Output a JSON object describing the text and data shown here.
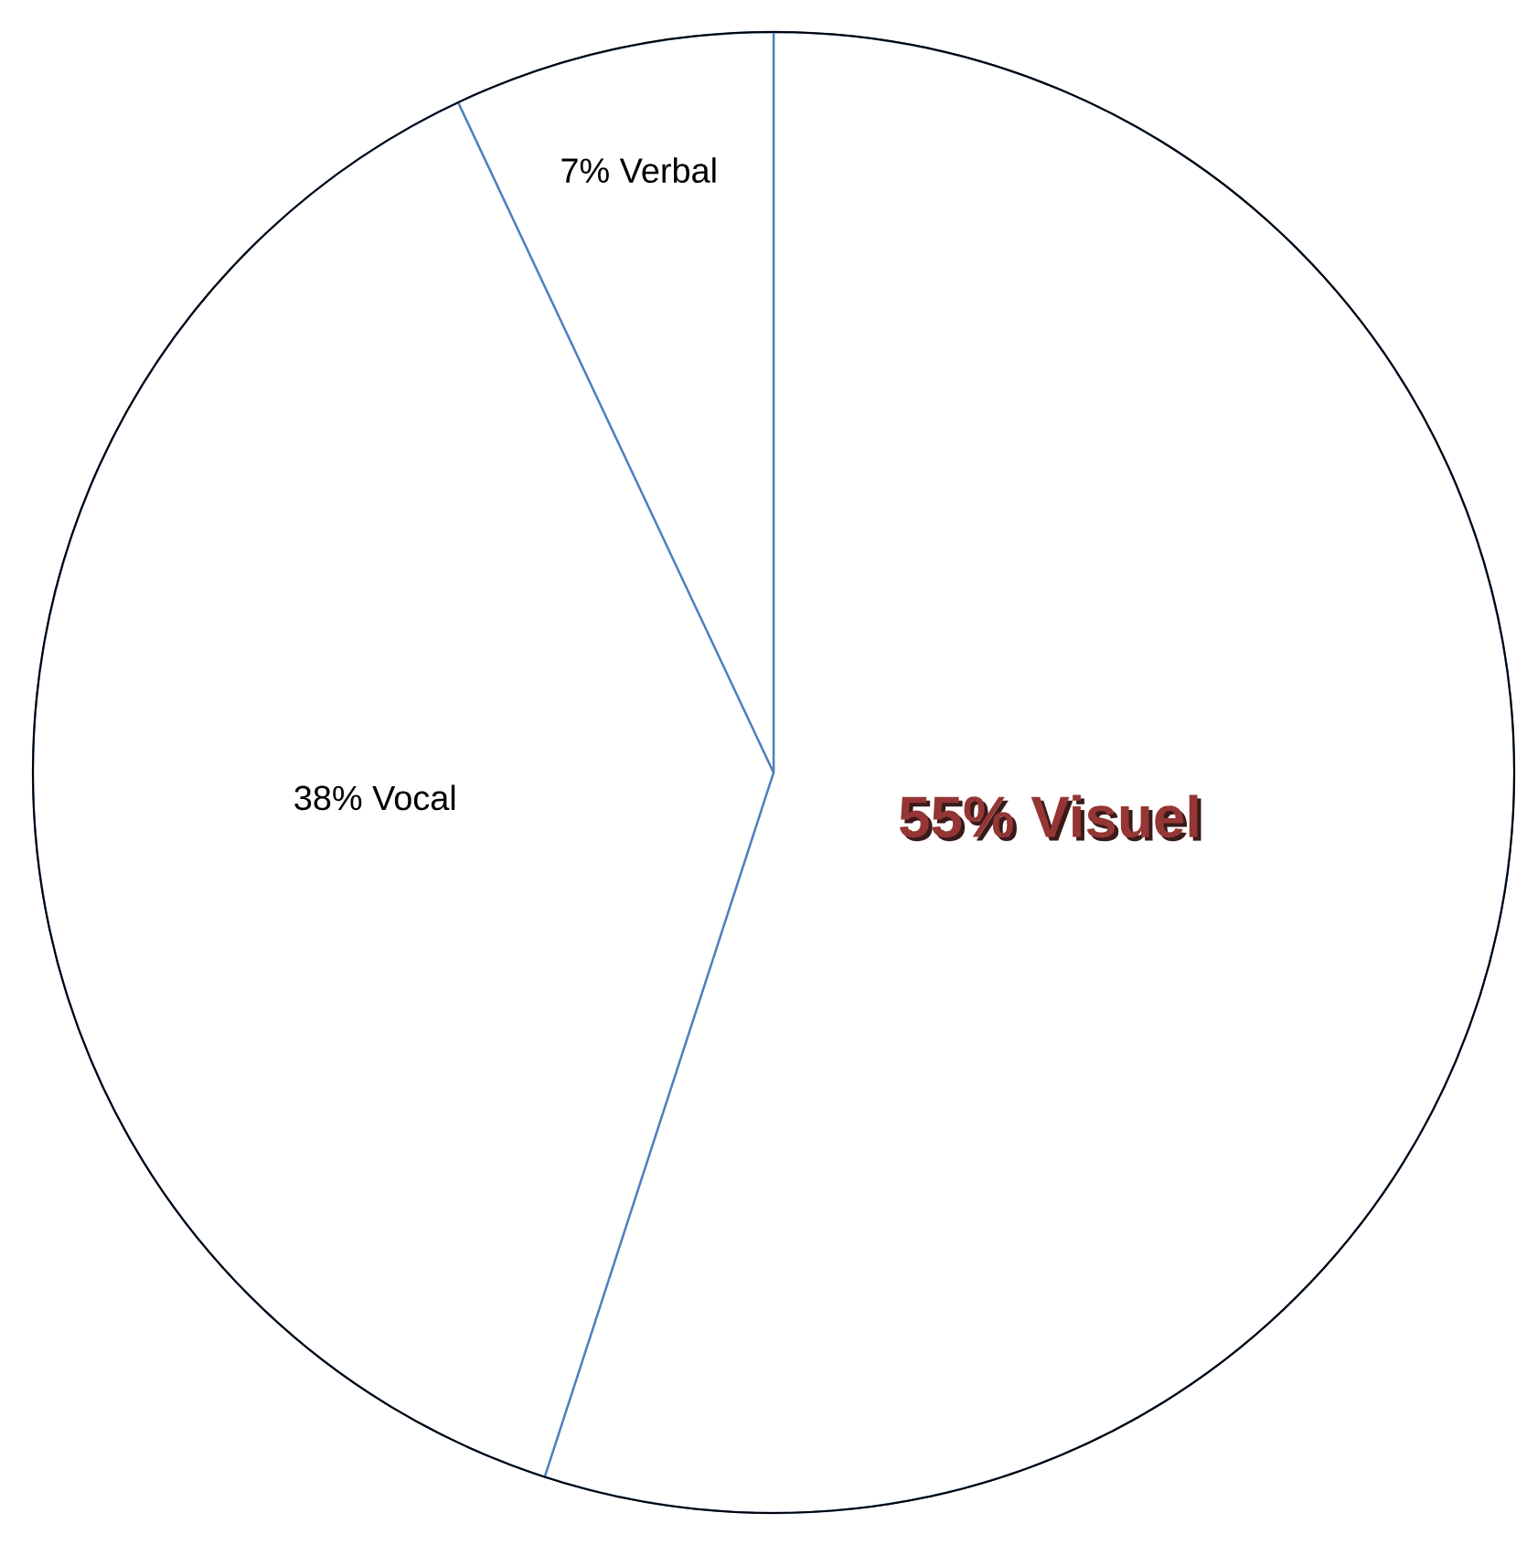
{
  "chart_data": {
    "type": "pie",
    "categories": [
      "55% Visuel",
      "38% Vocal",
      "7% Verbal"
    ],
    "values": [
      55,
      38,
      7
    ],
    "colors": [
      "#ffffff",
      "#ffffff",
      "#ffffff"
    ]
  }
}
